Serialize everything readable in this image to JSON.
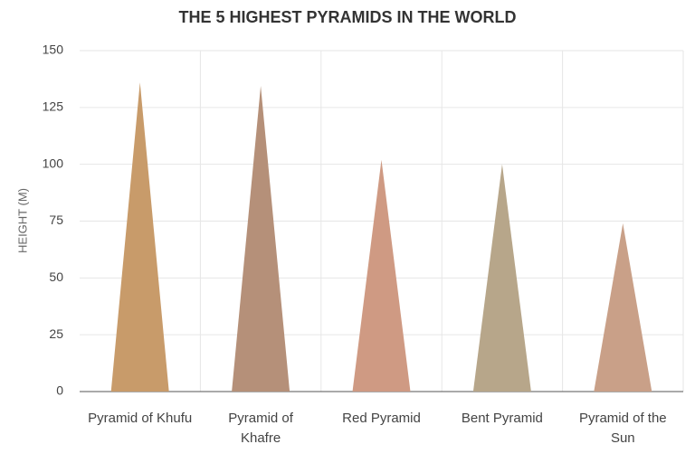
{
  "chart_data": {
    "type": "triangle_bar",
    "title": "THE 5 HIGHEST PYRAMIDS IN THE WORLD",
    "y_label": "HEIGHT (M)",
    "categories": [
      "Pyramid of Khufu",
      "Pyramid of Khafre",
      "Red Pyramid",
      "Bent Pyramid",
      "Pyramid of the Sun"
    ],
    "values": [
      136,
      134.5,
      102,
      100,
      74
    ],
    "colors": [
      "#c89b6a",
      "#b59079",
      "#cf9a83",
      "#b7a68a",
      "#c9a088"
    ],
    "ylim": [
      0,
      150
    ],
    "yticks": [
      0,
      25,
      50,
      75,
      100,
      125,
      150
    ],
    "grid": true
  }
}
